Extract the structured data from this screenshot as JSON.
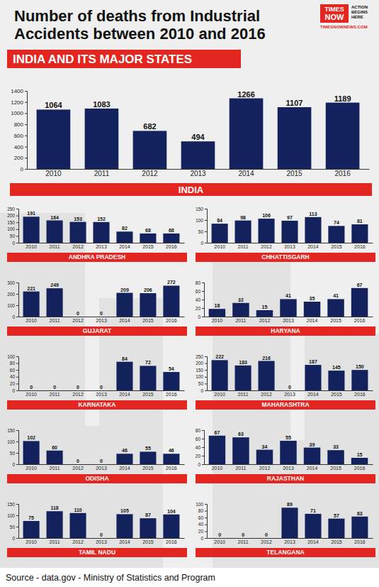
{
  "title": "Number of deaths from Industrial Accidents between 2010 and 2016",
  "subtitle": "INDIA AND ITS MAJOR STATES",
  "source": "Source - data.gov - Ministry of Statistics and Program",
  "logo": {
    "lines": [
      "TIMES",
      "NOW"
    ],
    "tagline": "ACTION BEGINS HERE",
    "site": "TIMESNOWNEWS.COM"
  },
  "chart_data": [
    {
      "type": "bar",
      "title": "INDIA",
      "categories": [
        "2010",
        "2011",
        "2012",
        "2013",
        "2014",
        "2015",
        "2016"
      ],
      "values": [
        1064,
        1083,
        682,
        494,
        1266,
        1107,
        1189
      ],
      "color": "#13215c",
      "ylim": [
        0,
        1400
      ],
      "yticks": [
        0,
        200,
        400,
        600,
        800,
        1000,
        1200,
        1400
      ],
      "grid": false,
      "data_labels": true
    },
    {
      "type": "bar",
      "title": "ANDHRA PRADESH",
      "categories": [
        "2010",
        "2011",
        "2012",
        "2013",
        "2014",
        "2015",
        "2016"
      ],
      "values": [
        191,
        164,
        153,
        152,
        82,
        68,
        68
      ],
      "color": "#13215c",
      "ylim": [
        0,
        250
      ],
      "yticks": [
        0,
        50,
        100,
        150,
        200,
        250
      ],
      "grid": false,
      "data_labels": true
    },
    {
      "type": "bar",
      "title": "CHHATTISGARH",
      "categories": [
        "2010",
        "2011",
        "2012",
        "2013",
        "2014",
        "2015",
        "2016"
      ],
      "values": [
        84,
        98,
        106,
        97,
        113,
        74,
        81
      ],
      "color": "#13215c",
      "ylim": [
        0,
        150
      ],
      "yticks": [
        0,
        50,
        100,
        150
      ],
      "grid": false,
      "data_labels": true
    },
    {
      "type": "bar",
      "title": "GUJARAT",
      "categories": [
        "2010",
        "2011",
        "2012",
        "2013",
        "2014",
        "2015",
        "2016"
      ],
      "values": [
        221,
        249,
        0,
        0,
        209,
        206,
        272
      ],
      "color": "#13215c",
      "ylim": [
        0,
        300
      ],
      "yticks": [
        0,
        100,
        200,
        300
      ],
      "grid": false,
      "data_labels": true
    },
    {
      "type": "bar",
      "title": "HARYANA",
      "categories": [
        "2010",
        "2011",
        "2012",
        "2013",
        "2014",
        "2015",
        "2016"
      ],
      "values": [
        18,
        32,
        15,
        41,
        35,
        41,
        67
      ],
      "color": "#13215c",
      "ylim": [
        0,
        80
      ],
      "yticks": [
        0,
        20,
        40,
        60,
        80
      ],
      "grid": false,
      "data_labels": true
    },
    {
      "type": "bar",
      "title": "KARNATAKA",
      "categories": [
        "2010",
        "2011",
        "2012",
        "2013",
        "2014",
        "2015",
        "2016"
      ],
      "values": [
        0,
        0,
        0,
        0,
        84,
        72,
        54
      ],
      "color": "#13215c",
      "ylim": [
        0,
        100
      ],
      "yticks": [
        0,
        20,
        40,
        60,
        80,
        100
      ],
      "grid": false,
      "data_labels": true
    },
    {
      "type": "bar",
      "title": "MAHARASHTRA",
      "categories": [
        "2010",
        "2011",
        "2012",
        "2013",
        "2014",
        "2015",
        "2016"
      ],
      "values": [
        222,
        183,
        216,
        0,
        187,
        145,
        150
      ],
      "color": "#13215c",
      "ylim": [
        0,
        250
      ],
      "yticks": [
        0,
        50,
        100,
        150,
        200,
        250
      ],
      "grid": false,
      "data_labels": true
    },
    {
      "type": "bar",
      "title": "ODISHA",
      "categories": [
        "2010",
        "2011",
        "2012",
        "2013",
        "2014",
        "2015",
        "2016"
      ],
      "values": [
        102,
        60,
        0,
        0,
        46,
        55,
        46
      ],
      "color": "#13215c",
      "ylim": [
        0,
        150
      ],
      "yticks": [
        0,
        50,
        100,
        150
      ],
      "grid": false,
      "data_labels": true
    },
    {
      "type": "bar",
      "title": "RAJASTHAN",
      "categories": [
        "2010",
        "2011",
        "2012",
        "2013",
        "2014",
        "2015",
        "2016"
      ],
      "values": [
        67,
        63,
        34,
        55,
        39,
        33,
        15
      ],
      "color": "#13215c",
      "ylim": [
        0,
        80
      ],
      "yticks": [
        0,
        20,
        40,
        60,
        80
      ],
      "grid": false,
      "data_labels": true
    },
    {
      "type": "bar",
      "title": "TAMIL NADU",
      "categories": [
        "2010",
        "2011",
        "2012",
        "2013",
        "2014",
        "2015",
        "2016"
      ],
      "values": [
        75,
        118,
        110,
        0,
        105,
        87,
        104
      ],
      "color": "#13215c",
      "ylim": [
        0,
        150
      ],
      "yticks": [
        0,
        50,
        100,
        150
      ],
      "grid": false,
      "data_labels": true
    },
    {
      "type": "bar",
      "title": "TELANGANA",
      "categories": [
        "2010",
        "2011",
        "2012",
        "2013",
        "2014",
        "2015",
        "2016"
      ],
      "values": [
        0,
        0,
        0,
        89,
        71,
        57,
        63
      ],
      "color": "#13215c",
      "ylim": [
        0,
        100
      ],
      "yticks": [
        0,
        20,
        40,
        60,
        80,
        100
      ],
      "grid": false,
      "data_labels": true
    }
  ]
}
